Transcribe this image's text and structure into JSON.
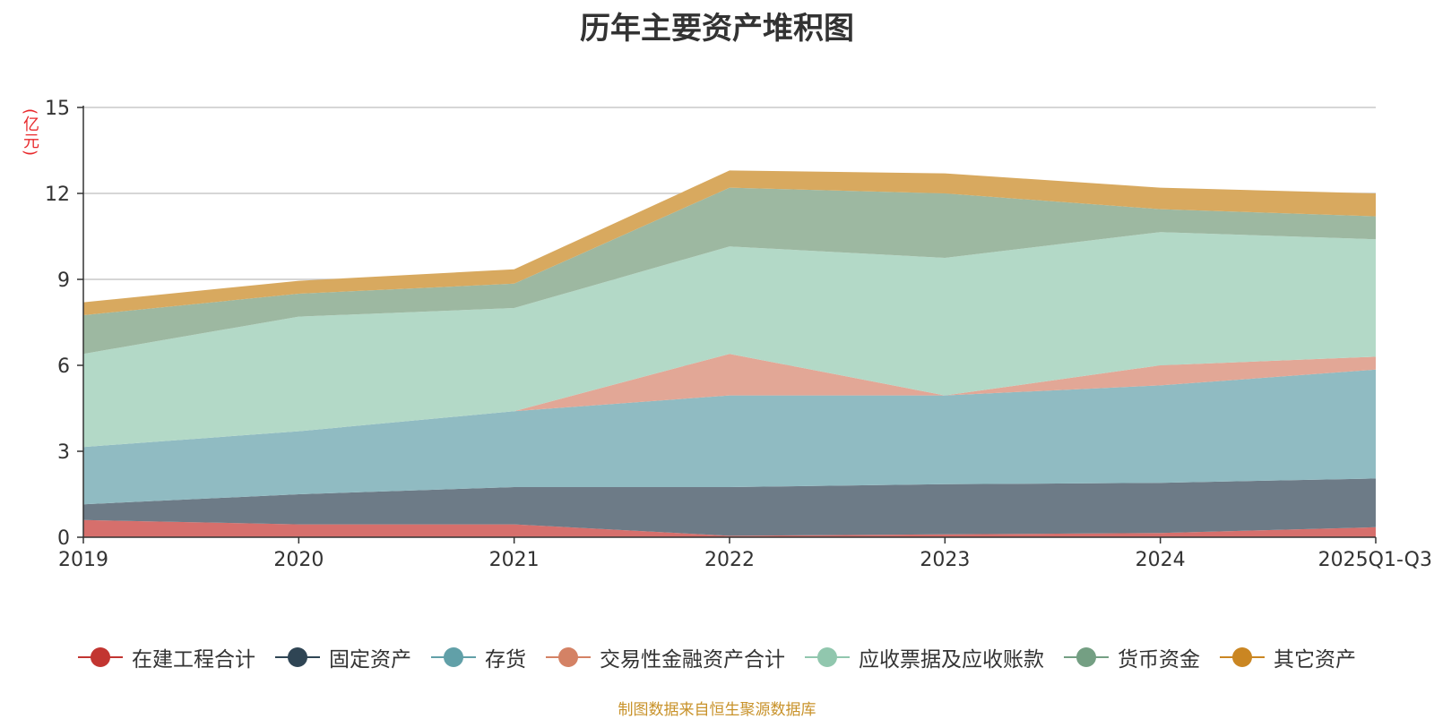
{
  "chart_data": {
    "type": "area",
    "stacked": true,
    "title": "历年主要资产堆积图",
    "ylabel": "(亿元)",
    "ylim": [
      0,
      15
    ],
    "yticks": [
      0,
      3,
      6,
      9,
      12,
      15
    ],
    "categories": [
      "2019",
      "2020",
      "2021",
      "2022",
      "2023",
      "2024",
      "2025Q1-Q3"
    ],
    "series": [
      {
        "name": "在建工程合计",
        "color": "#c23531",
        "fill": "#d66f6c",
        "values": [
          0.6,
          0.45,
          0.45,
          0.05,
          0.1,
          0.15,
          0.35
        ]
      },
      {
        "name": "固定资产",
        "color": "#2f4554",
        "fill": "#6d7b87",
        "values": [
          0.55,
          1.05,
          1.3,
          1.7,
          1.75,
          1.75,
          1.7
        ]
      },
      {
        "name": "存货",
        "color": "#61a0a8",
        "fill": "#90bbc2",
        "values": [
          2.0,
          2.2,
          2.65,
          3.2,
          3.1,
          3.4,
          3.8
        ]
      },
      {
        "name": "交易性金融资产合计",
        "color": "#d48265",
        "fill": "#e2a796",
        "values": [
          0,
          0,
          0,
          1.45,
          0,
          0.7,
          0.45
        ]
      },
      {
        "name": "应收票据及应收账款",
        "color": "#91c7ae",
        "fill": "#b3d9c7",
        "values": [
          3.25,
          4.0,
          3.6,
          3.75,
          4.8,
          4.65,
          4.1
        ]
      },
      {
        "name": "货币资金",
        "color": "#749f83",
        "fill": "#9db8a1",
        "values": [
          1.35,
          0.8,
          0.85,
          2.05,
          2.25,
          0.8,
          0.8
        ]
      },
      {
        "name": "其它资产",
        "color": "#ca8622",
        "fill": "#d8a95f",
        "values": [
          0.45,
          0.45,
          0.5,
          0.6,
          0.7,
          0.75,
          0.8
        ]
      }
    ]
  },
  "source_note": "制图数据来自恒生聚源数据库"
}
